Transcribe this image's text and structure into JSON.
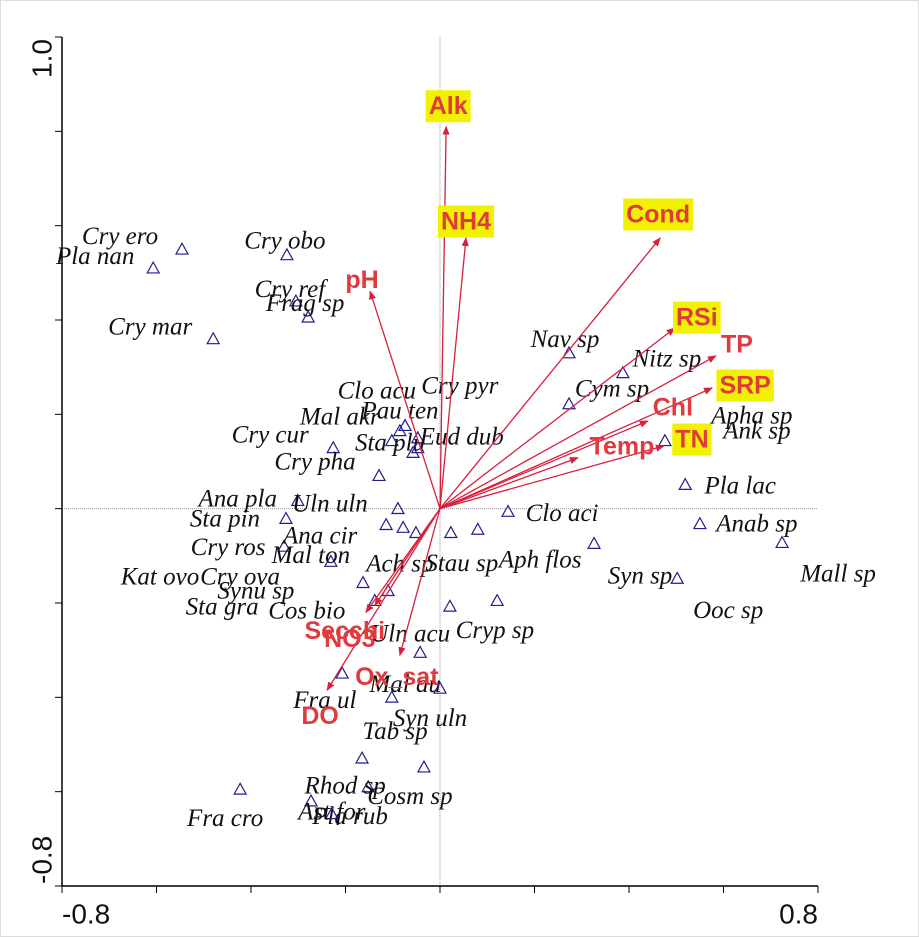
{
  "chart_data": {
    "type": "biplot",
    "xlim": [
      -0.8,
      0.8
    ],
    "ylim": [
      -0.8,
      1.0
    ],
    "xticks": [
      -0.8,
      0.8
    ],
    "yticks": [
      -0.8,
      {
        "value": 1.0,
        "label": "1.0"
      }
    ],
    "xminor": [
      -0.8,
      -0.6,
      -0.4,
      -0.2,
      0,
      0.2,
      0.4,
      0.6,
      0.8
    ],
    "yminor": [
      -0.8,
      -0.6,
      -0.4,
      -0.2,
      0,
      0.2,
      0.4,
      0.6,
      0.8,
      1.0
    ],
    "point_color": "#1f1f8f",
    "vector_color": "#d8203c",
    "label_color": "#e03a3e",
    "highlight_color": "#f2f200",
    "points": [
      {
        "label": "Cry ero",
        "x": -0.546,
        "y": 0.55
      },
      {
        "label": "Pla nan",
        "x": -0.607,
        "y": 0.51
      },
      {
        "label": "Cry obo",
        "x": -0.324,
        "y": 0.538
      },
      {
        "label": "Cry ref",
        "x": -0.305,
        "y": 0.44
      },
      {
        "label": "Frag sp",
        "x": -0.279,
        "y": 0.406
      },
      {
        "label": "Cry mar",
        "x": -0.48,
        "y": 0.36
      },
      {
        "label": "Nav sp",
        "x": 0.273,
        "y": 0.33
      },
      {
        "label": "Nitz sp",
        "x": 0.387,
        "y": 0.288
      },
      {
        "label": "Cym sp",
        "x": 0.273,
        "y": 0.222
      },
      {
        "label": "Clo acu",
        "x": -0.085,
        "y": 0.165
      },
      {
        "label": "Cry pyr",
        "x": -0.047,
        "y": 0.15
      },
      {
        "label": "Pau ten",
        "x": -0.074,
        "y": 0.176
      },
      {
        "label": "Mal akr",
        "x": -0.102,
        "y": 0.144
      },
      {
        "label": "Sta plu",
        "x": -0.057,
        "y": 0.119
      },
      {
        "label": "Eud dub",
        "x": -0.047,
        "y": 0.129
      },
      {
        "label": "Apha sp",
        "x": 0.476,
        "y": 0.144
      },
      {
        "label": "Ank sp",
        "x": 0.529,
        "y": 0.152
      },
      {
        "label": "Cry cur",
        "x": -0.226,
        "y": 0.129
      },
      {
        "label": "Cry pha",
        "x": -0.129,
        "y": 0.07
      },
      {
        "label": "Pla lac",
        "x": 0.519,
        "y": 0.051
      },
      {
        "label": "Ana pla",
        "x": -0.301,
        "y": 0.017
      },
      {
        "label": "Uln uln",
        "x": -0.089,
        "y": 0.0
      },
      {
        "label": "Sta pin",
        "x": -0.326,
        "y": -0.021
      },
      {
        "label": "Clo aci",
        "x": 0.144,
        "y": -0.006
      },
      {
        "label": "Anab sp",
        "x": 0.55,
        "y": -0.032
      },
      {
        "label": "Mall sp",
        "x": 0.724,
        "y": -0.072
      },
      {
        "label": "Cry ros",
        "x": -0.33,
        "y": -0.08
      },
      {
        "label": "Ana cir",
        "x": -0.114,
        "y": -0.034
      },
      {
        "label": "Mal ton",
        "x": -0.231,
        "y": -0.112
      },
      {
        "label": "Syn sp",
        "x": 0.326,
        "y": -0.074
      },
      {
        "label": "Aph flos",
        "x": 0.121,
        "y": -0.195
      },
      {
        "label": "Stau sp",
        "x": 0.08,
        "y": -0.044
      },
      {
        "label": "Ach sp",
        "x": 0.023,
        "y": -0.051
      },
      {
        "label": "Kat ovo",
        "x": -0.163,
        "y": -0.157
      },
      {
        "label": "Cry ova",
        "x": -0.11,
        "y": -0.174
      },
      {
        "label": "Synu sp",
        "x": -0.051,
        "y": -0.051
      },
      {
        "label": "Sta gra",
        "x": -0.078,
        "y": -0.04
      },
      {
        "label": "Cos bio",
        "x": -0.138,
        "y": -0.195
      },
      {
        "label": "Ooc sp",
        "x": 0.502,
        "y": -0.148
      },
      {
        "label": "Uln acu",
        "x": -0.042,
        "y": -0.305
      },
      {
        "label": "Cryp sp",
        "x": 0.021,
        "y": -0.207
      },
      {
        "label": "Mal au",
        "x": -0.207,
        "y": -0.349
      },
      {
        "label": "Fra ul",
        "x": -0.102,
        "y": -0.4
      },
      {
        "label": "Syn uln",
        "x": 0.0,
        "y": -0.381
      },
      {
        "label": "Tab sp",
        "x": -0.165,
        "y": -0.529
      },
      {
        "label": "Rhod sp",
        "x": -0.152,
        "y": -0.59
      },
      {
        "label": "Cosm sp",
        "x": -0.034,
        "y": -0.548
      },
      {
        "label": "Fra cro",
        "x": -0.423,
        "y": -0.595
      },
      {
        "label": "Pla rub",
        "x": -0.273,
        "y": -0.62
      },
      {
        "label": "Ast for",
        "x": -0.229,
        "y": -0.647
      }
    ],
    "vectors": [
      {
        "label": "Alk",
        "x": 0.013,
        "y": 0.81,
        "highlight": true
      },
      {
        "label": "NH4",
        "x": 0.055,
        "y": 0.574,
        "highlight": true
      },
      {
        "label": "Cond",
        "x": 0.466,
        "y": 0.574,
        "highlight": true
      },
      {
        "label": "pH",
        "x": -0.148,
        "y": 0.461,
        "highlight": false
      },
      {
        "label": "RSi",
        "x": 0.497,
        "y": 0.383,
        "highlight": true
      },
      {
        "label": "TP",
        "x": 0.584,
        "y": 0.324,
        "highlight": false
      },
      {
        "label": "SRP",
        "x": 0.576,
        "y": 0.256,
        "highlight": true
      },
      {
        "label": "Chl",
        "x": 0.44,
        "y": 0.186,
        "highlight": false
      },
      {
        "label": "TN",
        "x": 0.474,
        "y": 0.133,
        "highlight": true
      },
      {
        "label": "Temp",
        "x": 0.292,
        "y": 0.108,
        "highlight": false
      },
      {
        "label": "Secchi",
        "x": -0.157,
        "y": -0.22,
        "highlight": false
      },
      {
        "label": "NO3",
        "x": -0.138,
        "y": -0.205,
        "highlight": false
      },
      {
        "label": "Ox_sat",
        "x": -0.085,
        "y": -0.311,
        "highlight": false
      },
      {
        "label": "DO",
        "x": -0.239,
        "y": -0.385,
        "highlight": false
      }
    ]
  }
}
